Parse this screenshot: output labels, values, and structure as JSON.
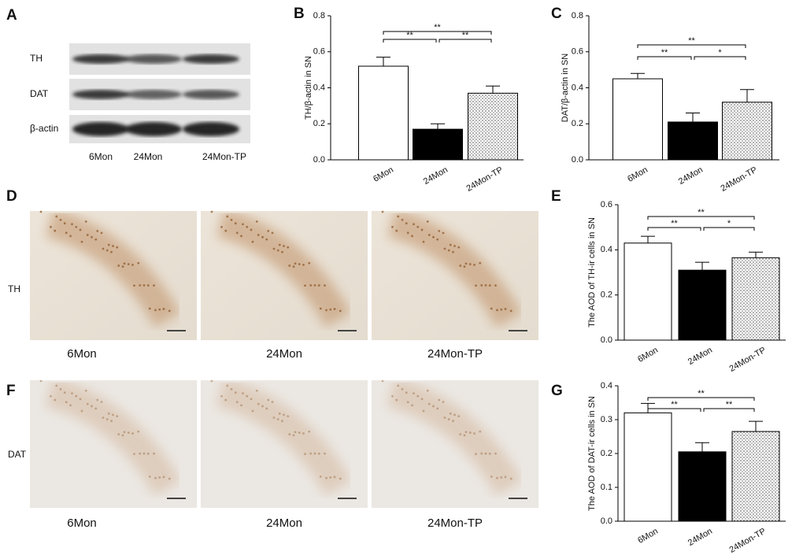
{
  "blot": {
    "letter": "A",
    "rows": [
      "TH",
      "DAT",
      "β-actin"
    ],
    "lanes": [
      "6Mon",
      "24Mon",
      "24Mon-TP"
    ]
  },
  "micrographs": [
    {
      "letter": "D",
      "label": "TH",
      "captions": [
        "6Mon",
        "24Mon",
        "24Mon-TP"
      ]
    },
    {
      "letter": "F",
      "label": "DAT",
      "captions": [
        "6Mon",
        "24Mon",
        "24Mon-TP"
      ]
    }
  ],
  "chart_data": [
    {
      "letter": "B",
      "type": "bar",
      "ylabel": "TH/β-actin in SN",
      "categories": [
        "6Mon",
        "24Mon",
        "24Mon-TP"
      ],
      "values": [
        0.52,
        0.17,
        0.37
      ],
      "errors": [
        0.05,
        0.03,
        0.04
      ],
      "fills": [
        "white",
        "black",
        "dots"
      ],
      "ylim": [
        0,
        0.8
      ],
      "yticks": [
        {
          "value": 0,
          "label": "0.0"
        },
        0.2,
        0.4,
        0.6,
        0.8
      ],
      "comparisons": [
        {
          "pair": [
            0,
            1
          ],
          "label": "**"
        },
        {
          "pair": [
            1,
            2
          ],
          "label": "**"
        },
        {
          "pair": [
            0,
            2
          ],
          "label": "**"
        }
      ]
    },
    {
      "letter": "C",
      "type": "bar",
      "ylabel": "DAT/β-actin in SN",
      "categories": [
        "6Mon",
        "24Mon",
        "24Mon-TP"
      ],
      "values": [
        0.45,
        0.21,
        0.32
      ],
      "errors": [
        0.03,
        0.05,
        0.07
      ],
      "fills": [
        "white",
        "black",
        "dots"
      ],
      "ylim": [
        0,
        0.8
      ],
      "yticks": [
        {
          "value": 0,
          "label": "0.0"
        },
        0.2,
        0.4,
        0.6,
        0.8
      ],
      "comparisons": [
        {
          "pair": [
            0,
            1
          ],
          "label": "**"
        },
        {
          "pair": [
            1,
            2
          ],
          "label": "*"
        },
        {
          "pair": [
            0,
            2
          ],
          "label": "**"
        }
      ]
    },
    {
      "letter": "E",
      "type": "bar",
      "ylabel": "The AOD of TH-ir cells  in SN",
      "categories": [
        "6Mon",
        "24Mon",
        "24Mon-TP"
      ],
      "values": [
        0.43,
        0.31,
        0.365
      ],
      "errors": [
        0.03,
        0.035,
        0.025
      ],
      "fills": [
        "white",
        "black",
        "dots"
      ],
      "ylim": [
        0,
        0.6
      ],
      "yticks": [
        {
          "value": 0,
          "label": "0.0"
        },
        0.2,
        0.4,
        0.6
      ],
      "comparisons": [
        {
          "pair": [
            0,
            1
          ],
          "label": "**"
        },
        {
          "pair": [
            1,
            2
          ],
          "label": "*"
        },
        {
          "pair": [
            0,
            2
          ],
          "label": "**"
        }
      ]
    },
    {
      "letter": "G",
      "type": "bar",
      "ylabel": "The AOD of DAT-ir cells  in SN",
      "categories": [
        "6Mon",
        "24Mon",
        "24Mon-TP"
      ],
      "values": [
        0.32,
        0.205,
        0.265
      ],
      "errors": [
        0.028,
        0.027,
        0.03
      ],
      "fills": [
        "white",
        "black",
        "dots"
      ],
      "ylim": [
        0,
        0.4
      ],
      "yticks": [
        {
          "value": 0,
          "label": "0.0"
        },
        0.1,
        0.2,
        0.3,
        0.4
      ],
      "comparisons": [
        {
          "pair": [
            0,
            1
          ],
          "label": "**"
        },
        {
          "pair": [
            1,
            2
          ],
          "label": "**"
        },
        {
          "pair": [
            0,
            2
          ],
          "label": "**"
        }
      ]
    }
  ]
}
